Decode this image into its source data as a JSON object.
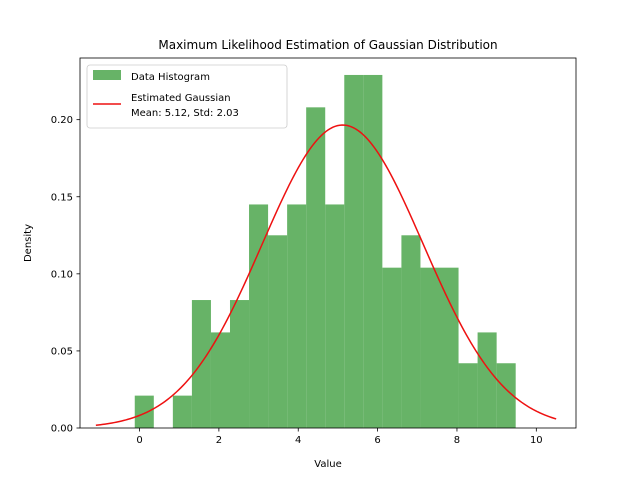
{
  "chart_data": {
    "type": "bar",
    "title": "Maximum Likelihood Estimation of Gaussian Distribution",
    "xlabel": "Value",
    "ylabel": "Density",
    "xlim": [
      -1.5,
      11.0
    ],
    "ylim": [
      0.0,
      0.24
    ],
    "xticks": [
      0,
      2,
      4,
      6,
      8,
      10
    ],
    "xtick_labels": [
      "0",
      "2",
      "4",
      "6",
      "8",
      "10"
    ],
    "yticks": [
      0.0,
      0.05,
      0.1,
      0.15,
      0.2
    ],
    "ytick_labels": [
      "0.00",
      "0.05",
      "0.10",
      "0.15",
      "0.20"
    ],
    "grid": false,
    "legend_position": "top-left",
    "histogram": {
      "name": "Data Histogram",
      "color": "#4ca64c",
      "bin_edges": [
        -0.12,
        0.36,
        0.84,
        1.32,
        1.8,
        2.28,
        2.76,
        3.24,
        3.72,
        4.2,
        4.68,
        5.16,
        5.64,
        6.12,
        6.6,
        7.08,
        7.56,
        8.04,
        8.52,
        9.0,
        9.48
      ],
      "densities": [
        0.021,
        0.0,
        0.021,
        0.083,
        0.062,
        0.083,
        0.145,
        0.125,
        0.145,
        0.208,
        0.145,
        0.229,
        0.229,
        0.104,
        0.125,
        0.104,
        0.104,
        0.042,
        0.062,
        0.042
      ]
    },
    "fit": {
      "name_line1": "Estimated Gaussian",
      "name_line2": "Mean: 5.12, Std: 2.03",
      "color": "#ee1111",
      "mean": 5.12,
      "std": 2.03,
      "x_range": [
        -1.1,
        10.5
      ]
    }
  }
}
